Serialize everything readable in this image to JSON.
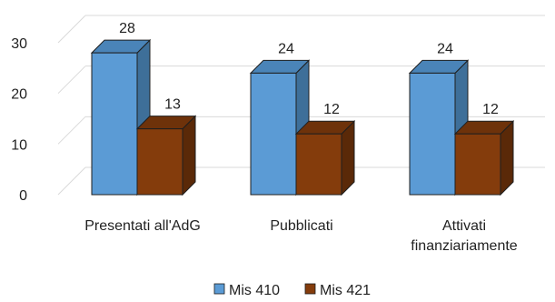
{
  "chart_data": {
    "type": "bar",
    "categories": [
      "Presentati all'AdG",
      "Pubblicati",
      "Attivati finanziariamente"
    ],
    "category_lines": [
      [
        "Presentati all'AdG"
      ],
      [
        "Pubblicati"
      ],
      [
        "Attivati",
        "finanziariamente"
      ]
    ],
    "series": [
      {
        "name": "Mis 410",
        "values": [
          28,
          24,
          24
        ],
        "color": "#5B9BD5",
        "side_color": "#3E6F99",
        "top_color": "#4A84B8"
      },
      {
        "name": "Mis 421",
        "values": [
          13,
          12,
          12
        ],
        "color": "#843C0C",
        "side_color": "#5A2908",
        "top_color": "#6E320A"
      }
    ],
    "y_ticks": [
      0,
      10,
      20,
      30
    ],
    "ylim": [
      0,
      30
    ],
    "grid": true,
    "three_d": true,
    "legend_position": "bottom",
    "title": "",
    "xlabel": "",
    "ylabel": ""
  }
}
